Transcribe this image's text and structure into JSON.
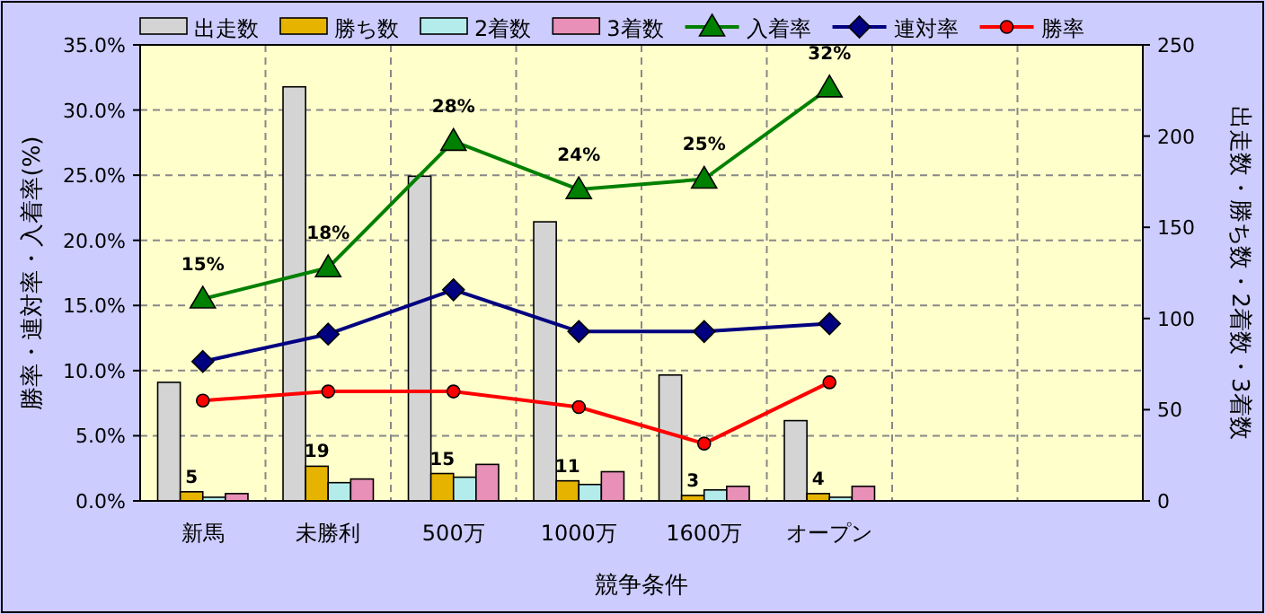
{
  "chart_data": {
    "type": "bar",
    "xlabel": "競争条件",
    "ylabel": "勝率・連対率・入着率(%)",
    "y2label": "出走数・勝ち数・2着数・3着数",
    "categories": [
      "新馬",
      "未勝利",
      "500万",
      "1000万",
      "1600万",
      "オープン",
      null,
      null
    ],
    "ylim": [
      0,
      35
    ],
    "yticks": [
      {
        "value": 0,
        "label": "0.0%"
      },
      {
        "value": 5,
        "label": "5.0%"
      },
      {
        "value": 10,
        "label": "10.0%"
      },
      {
        "value": 15,
        "label": "15.0%"
      },
      {
        "value": 20,
        "label": "20.0%"
      },
      {
        "value": 25,
        "label": "25.0%"
      },
      {
        "value": 30,
        "label": "30.0%"
      },
      {
        "value": 35,
        "label": "35.0%"
      }
    ],
    "y2lim": [
      0,
      250
    ],
    "y2ticks": [
      0,
      50,
      100,
      150,
      200,
      250
    ],
    "grid": true,
    "legend": "top",
    "series": [
      {
        "name": "出走数",
        "axis": "y2",
        "color": "#d4d4d4",
        "values": [
          65,
          227,
          178,
          153,
          69,
          44,
          null,
          null
        ]
      },
      {
        "name": "勝ち数",
        "axis": "y2",
        "color": "#e6b400",
        "values": [
          5,
          19,
          15,
          11,
          3,
          4,
          null,
          null
        ],
        "value_labels": [
          "5",
          "19",
          "15",
          "11",
          "3",
          "4",
          null,
          null
        ]
      },
      {
        "name": "2着数",
        "axis": "y2",
        "color": "#b4ecec",
        "values": [
          2,
          10,
          13,
          9,
          6,
          2,
          null,
          null
        ]
      },
      {
        "name": "3着数",
        "axis": "y2",
        "color": "#e890b8",
        "values": [
          4,
          12,
          20,
          16,
          8,
          8,
          null,
          null
        ]
      },
      {
        "name": "入着率",
        "type": "line",
        "axis": "y",
        "color": "#008000",
        "marker": "triangle",
        "values": [
          15.5,
          17.9,
          27.6,
          23.9,
          24.7,
          31.7,
          null,
          null
        ],
        "value_labels": [
          "15%",
          "18%",
          "28%",
          "24%",
          "25%",
          "32%",
          null,
          null
        ]
      },
      {
        "name": "連対率",
        "type": "line",
        "axis": "y",
        "color": "#000080",
        "marker": "diamond",
        "values": [
          10.7,
          12.8,
          16.2,
          13.0,
          13.0,
          13.6,
          null,
          null
        ]
      },
      {
        "name": "勝率",
        "type": "line",
        "axis": "y",
        "color": "#ff0000",
        "marker": "circle",
        "values": [
          7.7,
          8.4,
          8.4,
          7.2,
          4.4,
          9.1,
          null,
          null
        ]
      }
    ]
  }
}
